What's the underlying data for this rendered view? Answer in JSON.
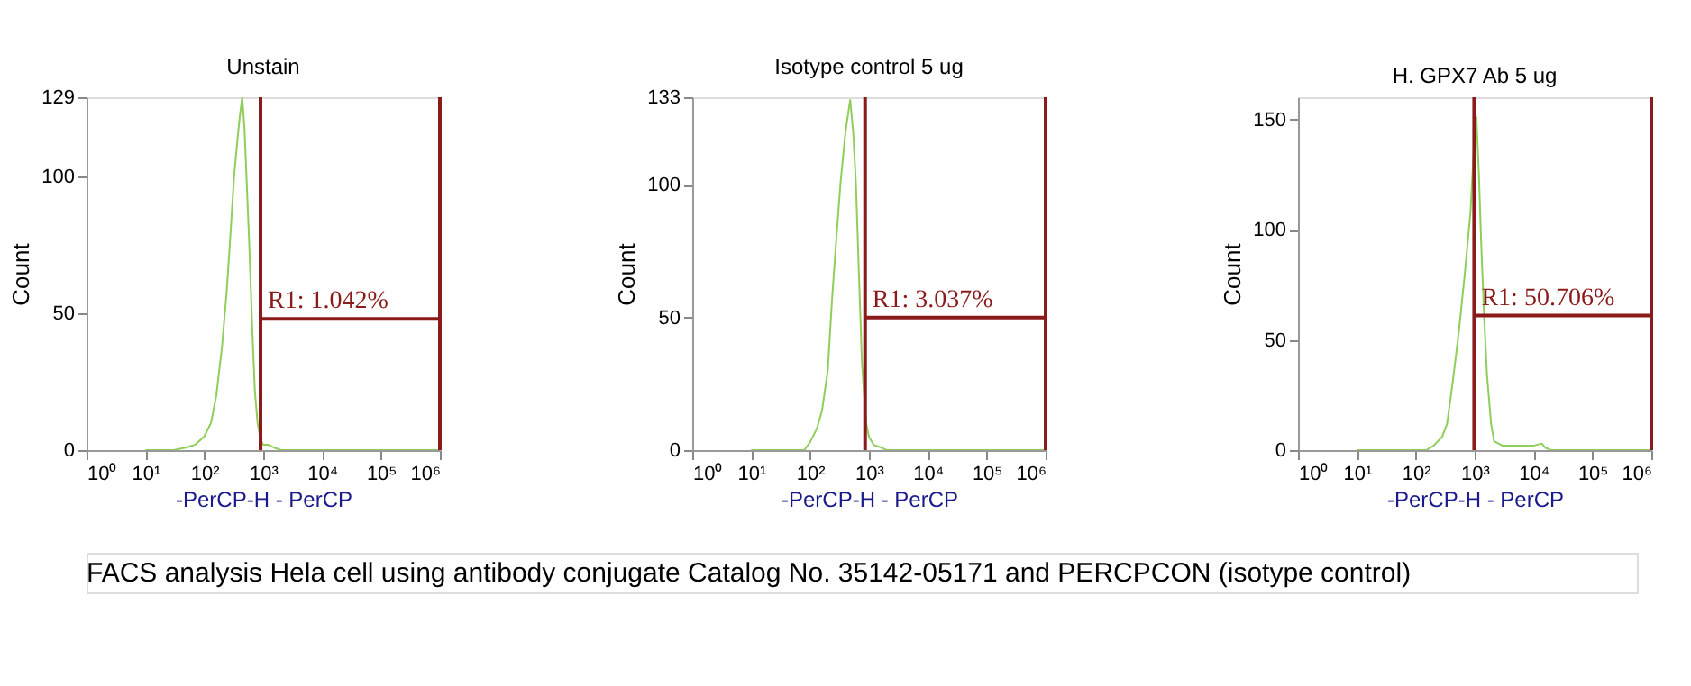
{
  "chart_data": [
    {
      "type": "line",
      "title": "Unstain",
      "xlabel": "-PerCP-H - PerCP",
      "ylabel": "Count",
      "log": "x",
      "grid": false,
      "xlim": [
        1,
        1000000
      ],
      "xticks": [
        {
          "value": 1,
          "label": "10⁰"
        },
        {
          "value": 10,
          "label": "10¹"
        },
        {
          "value": 100,
          "label": "10²"
        },
        {
          "value": 1000,
          "label": "10³"
        },
        {
          "value": 10000,
          "label": "10⁴"
        },
        {
          "value": 100000,
          "label": "10⁵"
        },
        {
          "value": 1000000,
          "label": "10⁶"
        }
      ],
      "ylim": [
        0,
        129
      ],
      "yticks": [
        0,
        50,
        100,
        129
      ],
      "series": [
        {
          "color": "#8fce5a",
          "x": [
            10,
            30,
            50,
            70,
            100,
            130,
            160,
            200,
            240,
            280,
            320,
            360,
            400,
            440,
            480,
            520,
            580,
            650,
            720,
            800,
            900,
            1000,
            1200,
            1500,
            2000,
            1000000
          ],
          "values": [
            0,
            0,
            1,
            2,
            5,
            10,
            20,
            38,
            58,
            80,
            100,
            112,
            122,
            129,
            118,
            100,
            75,
            45,
            22,
            10,
            4,
            2,
            2,
            1,
            0,
            0
          ]
        }
      ],
      "ref_lines": [
        {
          "axis": "x",
          "value": 900,
          "color": "#8b1a1a"
        },
        {
          "axis": "x",
          "value": 1000000,
          "color": "#8b1a1a"
        }
      ],
      "annotations": [
        {
          "text": "R1: 1.042%",
          "x": 900,
          "y": 48
        },
        "FACS analysis Hela cell using antibody conjugate Catalog No. 35142-05171 and PERCPCON (isotype control)"
      ]
    },
    {
      "type": "line",
      "title": "Isotype control 5 ug",
      "xlabel": "-PerCP-H - PerCP",
      "ylabel": "Count",
      "log": "x",
      "grid": false,
      "xlim": [
        1,
        1000000
      ],
      "xticks": [
        {
          "value": 1,
          "label": "10⁰"
        },
        {
          "value": 10,
          "label": "10¹"
        },
        {
          "value": 100,
          "label": "10²"
        },
        {
          "value": 1000,
          "label": "10³"
        },
        {
          "value": 10000,
          "label": "10⁴"
        },
        {
          "value": 100000,
          "label": "10⁵"
        },
        {
          "value": 1000000,
          "label": "10⁶"
        }
      ],
      "ylim": [
        0,
        133
      ],
      "yticks": [
        0,
        50,
        100,
        133
      ],
      "series": [
        {
          "color": "#8fce5a",
          "x": [
            10,
            80,
            100,
            130,
            160,
            200,
            235,
            280,
            330,
            400,
            480,
            540,
            600,
            680,
            760,
            900,
            1000,
            1200,
            1600,
            2000,
            1000000
          ],
          "values": [
            0,
            0,
            3,
            8,
            15,
            30,
            56,
            80,
            101,
            120,
            132,
            120,
            101,
            65,
            33,
            10,
            5,
            2,
            1,
            0,
            0
          ]
        }
      ],
      "ref_lines": [
        {
          "axis": "x",
          "value": 860,
          "color": "#8b1a1a"
        },
        {
          "axis": "x",
          "value": 1000000,
          "color": "#8b1a1a"
        }
      ],
      "annotations": [
        {
          "text": "R1: 3.037%",
          "x": 860,
          "y": 50
        }
      ]
    },
    {
      "type": "line",
      "title": "H. GPX7 Ab 5 ug",
      "xlabel": "-PerCP-H - PerCP",
      "ylabel": "Count",
      "log": "x",
      "grid": false,
      "xlim": [
        1,
        1000000
      ],
      "xticks": [
        {
          "value": 1,
          "label": "10⁰"
        },
        {
          "value": 10,
          "label": "10¹"
        },
        {
          "value": 100,
          "label": "10²"
        },
        {
          "value": 1000,
          "label": "10³"
        },
        {
          "value": 10000,
          "label": "10⁴"
        },
        {
          "value": 100000,
          "label": "10⁵"
        },
        {
          "value": 1000000,
          "label": "10⁶"
        }
      ],
      "ylim": [
        0,
        160
      ],
      "yticks": [
        0,
        50,
        100,
        150
      ],
      "series": [
        {
          "color": "#8fce5a",
          "x": [
            10,
            150,
            200,
            280,
            340,
            420,
            535,
            680,
            850,
            960,
            1070,
            1180,
            1290,
            1450,
            1620,
            1900,
            2140,
            3000,
            5000,
            10000,
            13800,
            16000,
            20000,
            1000000
          ],
          "values": [
            0,
            0,
            2,
            6,
            12,
            30,
            53,
            80,
            108,
            135,
            151,
            125,
            94,
            60,
            34,
            12,
            4,
            2,
            2,
            2,
            3,
            1,
            0,
            0
          ]
        }
      ],
      "ref_lines": [
        {
          "axis": "x",
          "value": 980,
          "color": "#8b1a1a"
        },
        {
          "axis": "x",
          "value": 1000000,
          "color": "#8b1a1a"
        }
      ],
      "annotations": [
        {
          "text": "R1: 50.706%",
          "x": 980,
          "y": 61
        }
      ]
    }
  ]
}
